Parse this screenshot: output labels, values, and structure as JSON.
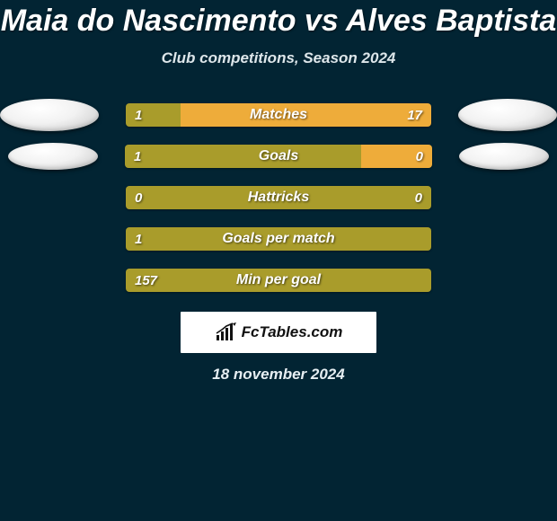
{
  "title": "Maia do Nascimento vs Alves Baptista",
  "subtitle": "Club competitions, Season 2024",
  "date": "18 november 2024",
  "brand_text": "FcTables.com",
  "colors": {
    "background": "#022433",
    "left_bar": "#a99c2b",
    "right_bar": "#eeac3a",
    "neutral_bar": "#a99c2b",
    "ellipse_light": "#f2f2f2"
  },
  "bars": [
    {
      "label": "Matches",
      "left_value": "1",
      "right_value": "17",
      "left_pct": 18,
      "right_pct": 82,
      "show_left_ellipse": true,
      "show_right_ellipse": true,
      "ellipse_narrow": false
    },
    {
      "label": "Goals",
      "left_value": "1",
      "right_value": "0",
      "left_pct": 77,
      "right_pct": 23,
      "show_left_ellipse": true,
      "show_right_ellipse": true,
      "ellipse_narrow": true
    },
    {
      "label": "Hattricks",
      "left_value": "0",
      "right_value": "0",
      "left_pct": 100,
      "right_pct": 0,
      "show_left_ellipse": false,
      "show_right_ellipse": false,
      "ellipse_narrow": false
    },
    {
      "label": "Goals per match",
      "left_value": "1",
      "right_value": "",
      "left_pct": 100,
      "right_pct": 0,
      "show_left_ellipse": false,
      "show_right_ellipse": false,
      "ellipse_narrow": false
    },
    {
      "label": "Min per goal",
      "left_value": "157",
      "right_value": "",
      "left_pct": 100,
      "right_pct": 0,
      "show_left_ellipse": false,
      "show_right_ellipse": false,
      "ellipse_narrow": false
    }
  ]
}
